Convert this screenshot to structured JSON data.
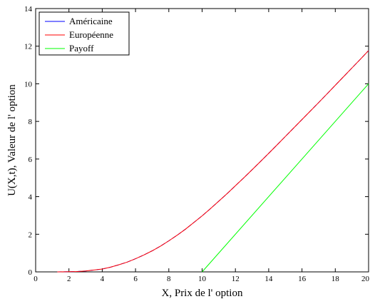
{
  "chart_data": {
    "type": "line",
    "xlabel": "X, Prix de l' option",
    "ylabel": "U(X,t), Valeur de l' option",
    "xlim": [
      0,
      20
    ],
    "ylim": [
      0,
      14
    ],
    "xticks": [
      "0",
      "2",
      "4",
      "6",
      "8",
      "10",
      "12",
      "14",
      "16",
      "18",
      "20"
    ],
    "yticks": [
      "0",
      "2",
      "4",
      "6",
      "8",
      "10",
      "12",
      "14"
    ],
    "grid": false,
    "legend_position": "top-left",
    "series": [
      {
        "name": "Américaine",
        "color": "#0000ff",
        "x": [
          1.3,
          2,
          2.5,
          3,
          3.5,
          4,
          4.5,
          5,
          5.5,
          6,
          6.5,
          7,
          7.5,
          8,
          8.5,
          9,
          9.5,
          10,
          10.5,
          11,
          11.5,
          12,
          12.5,
          13,
          13.5,
          14,
          14.5,
          15,
          15.5,
          16,
          16.5,
          17,
          17.5,
          18,
          18.5,
          19,
          19.5,
          20
        ],
        "y": [
          0.0,
          0.01,
          0.02,
          0.05,
          0.1,
          0.15,
          0.25,
          0.38,
          0.52,
          0.7,
          0.9,
          1.12,
          1.37,
          1.65,
          1.95,
          2.27,
          2.62,
          2.98,
          3.36,
          3.76,
          4.16,
          4.58,
          5.0,
          5.43,
          5.86,
          6.3,
          6.75,
          7.2,
          7.65,
          8.1,
          8.55,
          9.0,
          9.46,
          9.92,
          10.38,
          10.84,
          11.3,
          11.77
        ]
      },
      {
        "name": "Européenne",
        "color": "#ff0000",
        "x": [
          1.3,
          2,
          2.5,
          3,
          3.5,
          4,
          4.5,
          5,
          5.5,
          6,
          6.5,
          7,
          7.5,
          8,
          8.5,
          9,
          9.5,
          10,
          10.5,
          11,
          11.5,
          12,
          12.5,
          13,
          13.5,
          14,
          14.5,
          15,
          15.5,
          16,
          16.5,
          17,
          17.5,
          18,
          18.5,
          19,
          19.5,
          20
        ],
        "y": [
          0.0,
          0.01,
          0.02,
          0.05,
          0.1,
          0.15,
          0.25,
          0.38,
          0.52,
          0.7,
          0.9,
          1.12,
          1.37,
          1.65,
          1.95,
          2.27,
          2.62,
          2.98,
          3.36,
          3.76,
          4.16,
          4.58,
          5.0,
          5.43,
          5.86,
          6.3,
          6.75,
          7.2,
          7.65,
          8.1,
          8.55,
          9.0,
          9.46,
          9.92,
          10.38,
          10.84,
          11.3,
          11.77
        ]
      },
      {
        "name": "Payoff",
        "color": "#00ff00",
        "x": [
          10,
          20
        ],
        "y": [
          0,
          10
        ]
      }
    ]
  }
}
